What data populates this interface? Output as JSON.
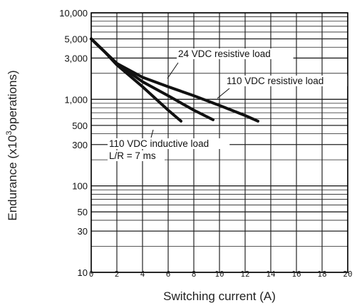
{
  "chart_data": {
    "type": "line",
    "xlabel": "Switching current (A)",
    "ylabel": "Endurance (x10^3 operations)",
    "ylabel_parts": {
      "before": "Endurance (x10",
      "sup": "3",
      "after": "operations)"
    },
    "xlim": [
      0,
      20
    ],
    "ylim": [
      10,
      10000
    ],
    "yscale": "log",
    "grid": true,
    "x_ticks": [
      "0",
      "2",
      "4",
      "6",
      "8",
      "10",
      "12",
      "14",
      "16",
      "18",
      "20"
    ],
    "y_ticks": [
      {
        "value": 10000,
        "label": "10,000"
      },
      {
        "value": 5000,
        "label": "5,000"
      },
      {
        "value": 3000,
        "label": "3,000"
      },
      {
        "value": 1000,
        "label": "1,000"
      },
      {
        "value": 500,
        "label": "500"
      },
      {
        "value": 300,
        "label": "300"
      },
      {
        "value": 100,
        "label": "100"
      },
      {
        "value": 50,
        "label": "50"
      },
      {
        "value": 30,
        "label": "30"
      },
      {
        "value": 10,
        "label": "10"
      }
    ],
    "series": [
      {
        "name": "24 VDC resistive load",
        "points": [
          [
            0,
            5000
          ],
          [
            1,
            3600
          ],
          [
            2,
            2600
          ],
          [
            4,
            1800
          ],
          [
            6,
            1400
          ],
          [
            8,
            1100
          ],
          [
            10,
            850
          ],
          [
            12,
            650
          ],
          [
            13,
            560
          ]
        ]
      },
      {
        "name": "110 VDC resistive load",
        "points": [
          [
            0,
            5000
          ],
          [
            1,
            3600
          ],
          [
            2,
            2600
          ],
          [
            4,
            1600
          ],
          [
            6,
            1100
          ],
          [
            8,
            750
          ],
          [
            9.5,
            580
          ]
        ]
      },
      {
        "name": "110 VDC inductive load",
        "points": [
          [
            0,
            5000
          ],
          [
            1,
            3600
          ],
          [
            2,
            2500
          ],
          [
            4,
            1400
          ],
          [
            6,
            750
          ],
          [
            7,
            560
          ]
        ]
      }
    ],
    "annotations": [
      {
        "text": "24 VDC resistive load",
        "series": 0
      },
      {
        "text": "110 VDC resistive load",
        "series": 1
      },
      {
        "text": "110 VDC inductive load",
        "series": 2
      },
      {
        "text": "L/R = 7 ms",
        "series": 2
      }
    ]
  }
}
